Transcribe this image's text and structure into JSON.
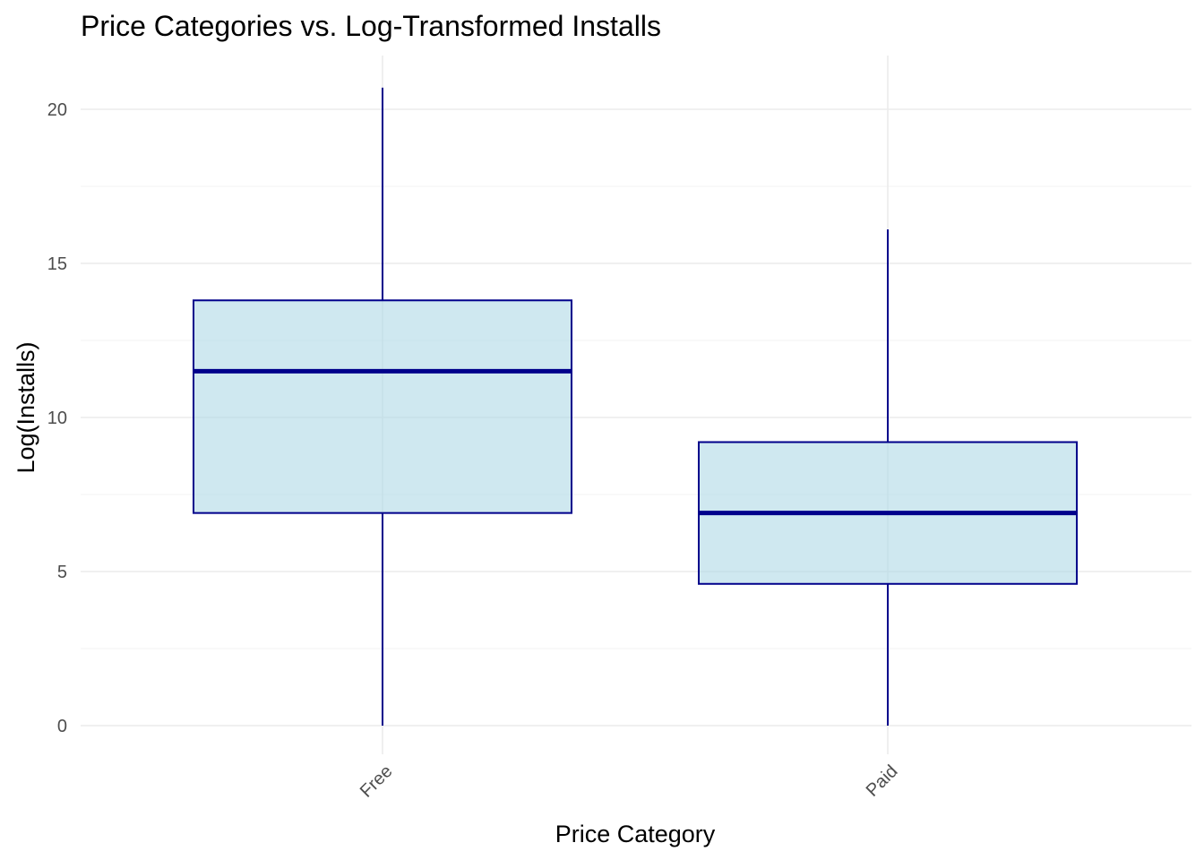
{
  "chart_data": {
    "type": "box",
    "title": "Price Categories vs. Log-Transformed Installs",
    "xlabel": "Price Category",
    "ylabel": "Log(Installs)",
    "categories": [
      "Free",
      "Paid"
    ],
    "boxes": [
      {
        "category": "Free",
        "whisker_low": 0,
        "q1": 6.9,
        "median": 11.5,
        "q3": 13.8,
        "whisker_high": 20.7
      },
      {
        "category": "Paid",
        "whisker_low": 0,
        "q1": 4.6,
        "median": 6.9,
        "q3": 9.2,
        "whisker_high": 16.1
      }
    ],
    "ylim": [
      -0.9,
      21.5
    ],
    "yticks": [
      0,
      5,
      10,
      15,
      20
    ],
    "ytick_labels": [
      "0",
      "5",
      "10",
      "15",
      "20"
    ],
    "grid": true,
    "legend": "none",
    "colors": {
      "box_fill": "#add8e6",
      "box_stroke": "#00008b",
      "grid_major": "#ebebeb",
      "grid_minor": "#f5f5f5"
    }
  }
}
